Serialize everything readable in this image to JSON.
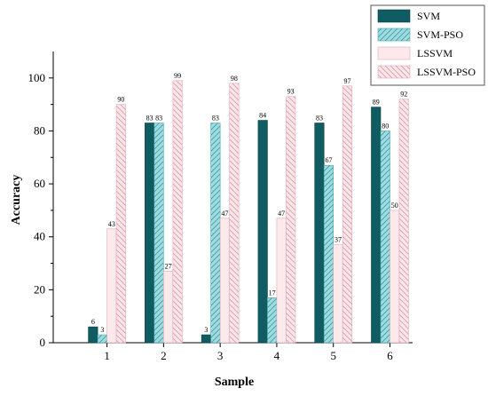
{
  "chart_data": {
    "type": "bar",
    "title": "",
    "xlabel": "Sample",
    "ylabel": "Accuracy",
    "categories": [
      "1",
      "2",
      "3",
      "4",
      "5",
      "6"
    ],
    "ylim": [
      0,
      110
    ],
    "yticks": [
      0,
      20,
      40,
      60,
      80,
      100
    ],
    "legend_position": "top-right",
    "series": [
      {
        "name": "SVM",
        "values": [
          6,
          83,
          3,
          84,
          83,
          89
        ],
        "color": "#0f5c63",
        "pattern": "solid"
      },
      {
        "name": "SVM-PSO",
        "values": [
          3,
          83,
          83,
          17,
          67,
          80
        ],
        "color": "#9fdcdf",
        "pattern": "hatch"
      },
      {
        "name": "LSSVM",
        "values": [
          43,
          27,
          47,
          47,
          37,
          50
        ],
        "color": "#fbe9ec",
        "pattern": "solid"
      },
      {
        "name": "LSSVM-PSO",
        "values": [
          90,
          99,
          98,
          93,
          97,
          92
        ],
        "color": "#f9dde2",
        "pattern": "hatch"
      }
    ]
  }
}
